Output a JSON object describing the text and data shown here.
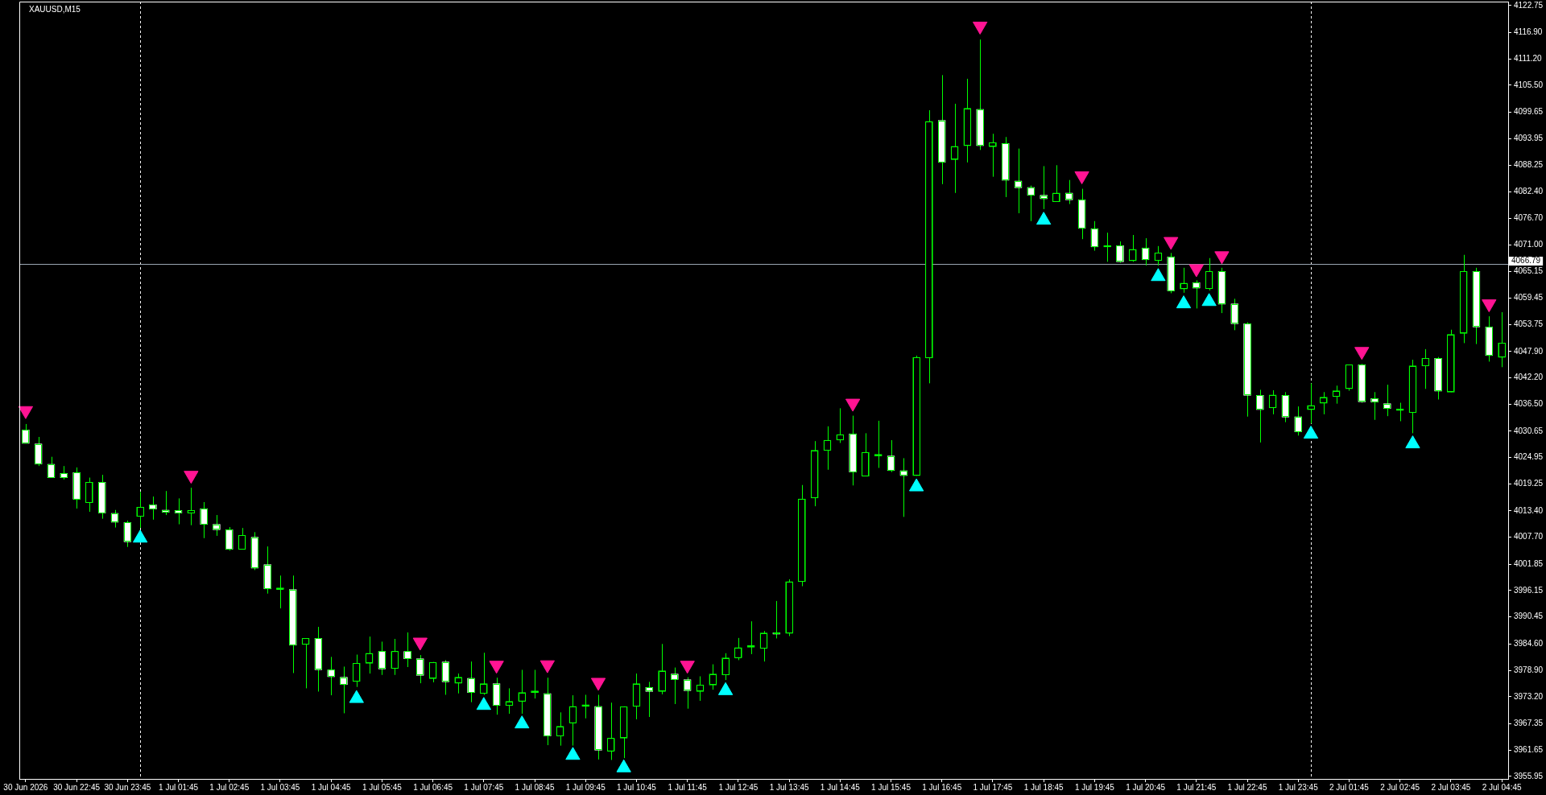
{
  "chart_data": {
    "type": "candlestick",
    "title": "XAUUSD,M15",
    "categories": [
      "30 Jun 2026",
      null,
      null,
      null,
      "30 Jun 22:45",
      null,
      null,
      null,
      "30 Jun 23:45",
      null,
      null,
      null,
      "1 Jul 01:45",
      null,
      null,
      null,
      "1 Jul 02:45",
      null,
      null,
      null,
      "1 Jul 03:45",
      null,
      null,
      null,
      "1 Jul 04:45",
      null,
      null,
      null,
      "1 Jul 05:45",
      null,
      null,
      null,
      "1 Jul 06:45",
      null,
      null,
      null,
      "1 Jul 07:45",
      null,
      null,
      null,
      "1 Jul 08:45",
      null,
      null,
      null,
      "1 Jul 09:45",
      null,
      null,
      null,
      "1 Jul 10:45",
      null,
      null,
      null,
      "1 Jul 11:45",
      null,
      null,
      null,
      "1 Jul 12:45",
      null,
      null,
      null,
      "1 Jul 13:45",
      null,
      null,
      null,
      "1 Jul 14:45",
      null,
      null,
      null,
      "1 Jul 15:45",
      null,
      null,
      null,
      "1 Jul 16:45",
      null,
      null,
      null,
      "1 Jul 17:45",
      null,
      null,
      null,
      "1 Jul 18:45",
      null,
      null,
      null,
      "1 Jul 19:45",
      null,
      null,
      null,
      "1 Jul 20:45",
      null,
      null,
      null,
      "1 Jul 21:45",
      null,
      null,
      null,
      "1 Jul 22:45",
      null,
      null,
      null,
      "1 Jul 23:45",
      null,
      null,
      null,
      "2 Jul 01:45",
      null,
      null,
      null,
      "2 Jul 02:45",
      null,
      null,
      null,
      "2 Jul 03:45",
      null,
      null,
      null,
      "2 Jul 04:45"
    ],
    "ohlc": [
      [
        4030.9,
        4032.2,
        4028.0,
        4028.0
      ],
      [
        4027.9,
        4029.4,
        4023.1,
        4023.5
      ],
      [
        4023.5,
        4025.1,
        4020.6,
        4020.6
      ],
      [
        4021.5,
        4023.1,
        4020.2,
        4020.6
      ],
      [
        4021.7,
        4022.8,
        4013.9,
        4015.9
      ],
      [
        4015.2,
        4020.6,
        4013.2,
        4019.6
      ],
      [
        4019.6,
        4021.2,
        4011.7,
        4012.9
      ],
      [
        4012.9,
        4013.6,
        4009.8,
        4010.9
      ],
      [
        4010.9,
        4011.3,
        4005.6,
        4006.7
      ],
      [
        4012.2,
        4017.5,
        4009.7,
        4014.2
      ],
      [
        4014.7,
        4016.5,
        4011.5,
        4013.8
      ],
      [
        4013.6,
        4017.7,
        4012.5,
        4013.1
      ],
      [
        4013.5,
        4016.1,
        4010.5,
        4012.9
      ],
      [
        4012.9,
        4018.4,
        4010.3,
        4013.5
      ],
      [
        4013.9,
        4015.3,
        4007.5,
        4010.5
      ],
      [
        4010.5,
        4012.5,
        4008.0,
        4009.3
      ],
      [
        4009.3,
        4009.9,
        4004.8,
        4005.1
      ],
      [
        4005.1,
        4009.7,
        4005.1,
        4008.1
      ],
      [
        4007.7,
        4008.8,
        4000.6,
        4001.0
      ],
      [
        4001.8,
        4005.7,
        3995.5,
        3996.5
      ],
      [
        3996.4,
        3999.4,
        3992.3,
        3996.4
      ],
      [
        3996.4,
        3999.4,
        3978.3,
        3984.3
      ],
      [
        3984.5,
        3985.8,
        3975.0,
        3985.8
      ],
      [
        3985.8,
        3988.3,
        3974.3,
        3979.0
      ],
      [
        3979.0,
        3981.8,
        3973.5,
        3977.5
      ],
      [
        3977.4,
        3979.7,
        3969.6,
        3975.8
      ],
      [
        3976.5,
        3982.3,
        3975.3,
        3980.4
      ],
      [
        3980.4,
        3986.2,
        3978.2,
        3982.6
      ],
      [
        3983.0,
        3985.1,
        3977.9,
        3979.2
      ],
      [
        3979.3,
        3985.7,
        3977.9,
        3983.0
      ],
      [
        3983.0,
        3987.1,
        3979.6,
        3981.4
      ],
      [
        3981.4,
        3982.2,
        3976.1,
        3977.8
      ],
      [
        3977.1,
        3980.7,
        3976.3,
        3980.6
      ],
      [
        3980.7,
        3981.1,
        3973.6,
        3976.4
      ],
      [
        3976.1,
        3978.2,
        3973.9,
        3977.4
      ],
      [
        3977.2,
        3980.8,
        3972.0,
        3974.1
      ],
      [
        3973.9,
        3982.7,
        3973.6,
        3976.0
      ],
      [
        3976.0,
        3977.3,
        3969.3,
        3971.3
      ],
      [
        3971.3,
        3975.0,
        3969.5,
        3972.2
      ],
      [
        3972.2,
        3979.0,
        3969.5,
        3974.1
      ],
      [
        3974.1,
        3979.0,
        3972.8,
        3974.1
      ],
      [
        3973.9,
        3977.3,
        3962.7,
        3964.7
      ],
      [
        3964.7,
        3969.8,
        3962.6,
        3966.8
      ],
      [
        3967.5,
        3973.5,
        3962.6,
        3971.1
      ],
      [
        3971.1,
        3973.6,
        3968.5,
        3971.1
      ],
      [
        3971.1,
        3973.6,
        3959.6,
        3961.6
      ],
      [
        3961.4,
        3971.9,
        3959.5,
        3964.2
      ],
      [
        3964.2,
        3971.1,
        3959.9,
        3971.0
      ],
      [
        3971.1,
        3978.2,
        3968.3,
        3976.0
      ],
      [
        3975.2,
        3976.4,
        3968.8,
        3974.3
      ],
      [
        3974.3,
        3984.6,
        3973.7,
        3978.8
      ],
      [
        3978.1,
        3979.5,
        3971.6,
        3976.9
      ],
      [
        3976.9,
        3977.4,
        3970.6,
        3974.5
      ],
      [
        3974.3,
        3977.6,
        3972.3,
        3975.7
      ],
      [
        3975.7,
        3980.2,
        3974.7,
        3978.1
      ],
      [
        3977.9,
        3982.6,
        3976.8,
        3981.6
      ],
      [
        3981.6,
        3985.9,
        3981.1,
        3983.8
      ],
      [
        3983.9,
        3989.5,
        3982.4,
        3983.9
      ],
      [
        3983.6,
        3987.4,
        3980.8,
        3987.0
      ],
      [
        3987.0,
        3993.9,
        3985.8,
        3986.7
      ],
      [
        3986.9,
        3998.6,
        3986.3,
        3998.1
      ],
      [
        3998.1,
        4019.0,
        3997.1,
        4016.0
      ],
      [
        4016.2,
        4028.5,
        4014.4,
        4026.5
      ],
      [
        4026.5,
        4031.7,
        4022.3,
        4028.7
      ],
      [
        4028.7,
        4035.6,
        4028.1,
        4029.9
      ],
      [
        4030.1,
        4034.0,
        4018.9,
        4021.8
      ],
      [
        4020.9,
        4030.2,
        4020.9,
        4026.1
      ],
      [
        4025.3,
        4032.9,
        4022.7,
        4025.3
      ],
      [
        4025.3,
        4028.7,
        4021.8,
        4022.1
      ],
      [
        4022.1,
        4024.8,
        4012.1,
        4021.0
      ],
      [
        4021.0,
        4047.0,
        4021.0,
        4046.6
      ],
      [
        4046.5,
        4100.1,
        4041.0,
        4097.7
      ],
      [
        4097.9,
        4107.7,
        4084.1,
        4088.8
      ],
      [
        4089.4,
        4101.5,
        4082.2,
        4092.3
      ],
      [
        4092.4,
        4106.9,
        4088.8,
        4100.5
      ],
      [
        4100.3,
        4115.4,
        4091.5,
        4092.4
      ],
      [
        4092.2,
        4095.0,
        4085.7,
        4093.1
      ],
      [
        4092.9,
        4094.3,
        4081.3,
        4084.9
      ],
      [
        4084.8,
        4091.8,
        4077.8,
        4083.3
      ],
      [
        4083.4,
        4083.8,
        4076.1,
        4081.7
      ],
      [
        4081.7,
        4088.0,
        4078.7,
        4080.9
      ],
      [
        4080.3,
        4088.2,
        4080.3,
        4082.2
      ],
      [
        4082.2,
        4085.0,
        4079.8,
        4080.7
      ],
      [
        4080.7,
        4083.1,
        4072.2,
        4074.5
      ],
      [
        4074.5,
        4076.1,
        4069.7,
        4070.5
      ],
      [
        4070.5,
        4073.6,
        4067.3,
        4070.5
      ],
      [
        4070.8,
        4071.7,
        4067.1,
        4067.3
      ],
      [
        4067.5,
        4073.1,
        4067.3,
        4070.0
      ],
      [
        4070.3,
        4072.4,
        4066.5,
        4067.7
      ],
      [
        4067.6,
        4070.7,
        4066.5,
        4069.2
      ],
      [
        4068.4,
        4069.2,
        4060.5,
        4061.0
      ],
      [
        4061.4,
        4066.0,
        4060.6,
        4062.7
      ],
      [
        4062.8,
        4063.3,
        4057.2,
        4061.6
      ],
      [
        4061.5,
        4068.1,
        4061.1,
        4065.2
      ],
      [
        4065.2,
        4066.0,
        4056.2,
        4058.1
      ],
      [
        4058.2,
        4059.3,
        4052.5,
        4053.9
      ],
      [
        4053.9,
        4054.2,
        4033.8,
        4038.4
      ],
      [
        4038.4,
        4039.6,
        4028.2,
        4035.3
      ],
      [
        4035.7,
        4039.5,
        4034.3,
        4038.5
      ],
      [
        4038.4,
        4039.1,
        4032.6,
        4033.7
      ],
      [
        4033.8,
        4036.0,
        4029.7,
        4030.5
      ],
      [
        4035.3,
        4041.0,
        4032.3,
        4036.2
      ],
      [
        4036.7,
        4039.1,
        4034.3,
        4038.0
      ],
      [
        4038.1,
        4040.5,
        4036.6,
        4039.4
      ],
      [
        4039.8,
        4045.0,
        4039.4,
        4045.0
      ],
      [
        4045.0,
        4045.2,
        4036.8,
        4037.0
      ],
      [
        4037.7,
        4039.1,
        4033.1,
        4036.9
      ],
      [
        4036.6,
        4040.7,
        4033.9,
        4035.5
      ],
      [
        4035.1,
        4036.8,
        4032.8,
        4035.1
      ],
      [
        4034.7,
        4046.1,
        4030.2,
        4044.8
      ],
      [
        4044.8,
        4048.4,
        4039.8,
        4046.4
      ],
      [
        4046.4,
        4046.7,
        4037.5,
        4039.3
      ],
      [
        4039.1,
        4052.6,
        4039.1,
        4051.6
      ],
      [
        4051.8,
        4068.8,
        4049.7,
        4065.2
      ],
      [
        4065.2,
        4066.0,
        4049.5,
        4053.2
      ],
      [
        4053.2,
        4055.5,
        4045.7,
        4047.0
      ],
      [
        4046.6,
        4056.4,
        4044.5,
        4049.7
      ]
    ],
    "color": "#00ff00",
    "colors": [
      "#ffffff",
      "#ffffff",
      "#ffffff",
      "#ffffff",
      "#ffffff",
      "#00ff00",
      "#ffffff",
      "#ffffff",
      "#ffffff",
      "#00ff00",
      "#ffffff",
      "#ffffff",
      "#ffffff",
      "#00ff00",
      "#ffffff",
      "#ffffff",
      "#ffffff",
      "#00ff00",
      "#ffffff",
      "#ffffff",
      "#00ff00",
      "#ffffff",
      "#00ff00",
      "#ffffff",
      "#ffffff",
      "#ffffff",
      "#00ff00",
      "#00ff00",
      "#ffffff",
      "#00ff00",
      "#ffffff",
      "#ffffff",
      "#00ff00",
      "#ffffff",
      "#00ff00",
      "#ffffff",
      "#00ff00",
      "#ffffff",
      "#00ff00",
      "#00ff00",
      "#00ff00",
      "#ffffff",
      "#00ff00",
      "#00ff00",
      "#00ff00",
      "#ffffff",
      "#00ff00",
      "#00ff00",
      "#00ff00",
      "#ffffff",
      "#00ff00",
      "#ffffff",
      "#ffffff",
      "#00ff00",
      "#00ff00",
      "#00ff00",
      "#00ff00",
      "#00ff00",
      "#00ff00",
      "#ffffff",
      "#00ff00",
      "#00ff00",
      "#00ff00",
      "#00ff00",
      "#00ff00",
      "#ffffff",
      "#00ff00",
      "#00ff00",
      "#ffffff",
      "#ffffff",
      "#00ff00",
      "#00ff00",
      "#ffffff",
      "#00ff00",
      "#00ff00",
      "#ffffff",
      "#00ff00",
      "#ffffff",
      "#ffffff",
      "#ffffff",
      "#ffffff",
      "#00ff00",
      "#ffffff",
      "#ffffff",
      "#ffffff",
      "#00ff00",
      "#ffffff",
      "#00ff00",
      "#ffffff",
      "#00ff00",
      "#ffffff",
      "#00ff00",
      "#ffffff",
      "#00ff00",
      "#ffffff",
      "#ffffff",
      "#ffffff",
      "#ffffff",
      "#00ff00",
      "#ffffff",
      "#ffffff",
      "#00ff00",
      "#00ff00",
      "#00ff00",
      "#00ff00",
      "#ffffff",
      "#ffffff",
      "#ffffff",
      "#00ff00",
      "#00ff00",
      "#00ff00",
      "#ffffff",
      "#00ff00",
      "#00ff00",
      "#ffffff",
      "#ffffff",
      "#00ff00"
    ],
    "series": [
      {
        "type": "scatter",
        "color": "#00ffff",
        "marker": "triangle",
        "values": [
          null,
          null,
          null,
          null,
          null,
          null,
          null,
          null,
          null,
          4007.5,
          null,
          null,
          null,
          null,
          null,
          null,
          null,
          null,
          null,
          null,
          null,
          null,
          null,
          null,
          null,
          null,
          3972.8,
          null,
          null,
          null,
          null,
          null,
          null,
          null,
          null,
          null,
          3971.3,
          null,
          null,
          3967.3,
          null,
          null,
          null,
          3960.5,
          null,
          null,
          null,
          3957.8,
          null,
          null,
          null,
          null,
          null,
          null,
          null,
          3974.5,
          null,
          null,
          null,
          null,
          null,
          null,
          null,
          null,
          null,
          null,
          null,
          null,
          null,
          null,
          4018.6,
          null,
          null,
          null,
          null,
          null,
          null,
          null,
          null,
          null,
          4076.3,
          null,
          null,
          null,
          null,
          null,
          null,
          null,
          null,
          4064.1,
          null,
          4058.2,
          null,
          4058.7,
          null,
          null,
          null,
          null,
          null,
          null,
          null,
          4030.0,
          null,
          null,
          null,
          null,
          null,
          null,
          null,
          4027.9,
          null,
          null,
          null,
          null,
          null,
          null,
          null
        ]
      },
      {
        "type": "scatter",
        "color": "#ff1493",
        "marker": "triangle",
        "values": [
          4035.1,
          null,
          null,
          null,
          null,
          null,
          null,
          null,
          null,
          null,
          null,
          null,
          null,
          4021.1,
          null,
          null,
          null,
          null,
          null,
          null,
          null,
          null,
          null,
          null,
          null,
          null,
          null,
          null,
          null,
          null,
          null,
          3985.0,
          null,
          null,
          null,
          null,
          null,
          3980.0,
          null,
          null,
          null,
          3980.1,
          null,
          null,
          null,
          3976.3,
          null,
          null,
          null,
          null,
          null,
          null,
          3980.0,
          null,
          null,
          null,
          null,
          null,
          null,
          null,
          null,
          null,
          null,
          null,
          null,
          4036.7,
          null,
          null,
          null,
          null,
          null,
          null,
          null,
          null,
          null,
          4118.3,
          null,
          null,
          null,
          null,
          null,
          null,
          null,
          4085.9,
          null,
          null,
          null,
          null,
          null,
          null,
          4071.7,
          null,
          4065.8,
          null,
          4068.6,
          null,
          null,
          null,
          null,
          null,
          null,
          null,
          null,
          null,
          null,
          4047.9,
          null,
          null,
          null,
          null,
          null,
          null,
          null,
          null,
          null,
          4058.2,
          null
        ]
      }
    ],
    "ylim": [
      3955.4,
      4123.6
    ],
    "yticks": [
      4122.75,
      {
        "value": 4116.9,
        "label": "4116.90"
      },
      {
        "value": 4111.2,
        "label": "4111.20"
      },
      {
        "value": 4105.5,
        "label": "4105.50"
      },
      4099.65,
      4093.95,
      4088.25,
      {
        "value": 4082.4,
        "label": "4082.40"
      },
      {
        "value": 4076.7,
        "label": "4076.70"
      },
      {
        "value": 4071,
        "label": "4071.00"
      },
      4065.15,
      4059.45,
      4053.75,
      {
        "value": 4047.9,
        "label": "4047.90"
      },
      {
        "value": 4042.2,
        "label": "4042.20"
      },
      {
        "value": 4036.5,
        "label": "4036.50"
      },
      4030.65,
      4024.95,
      4019.25,
      {
        "value": 4013.4,
        "label": "4013.40"
      },
      {
        "value": 4007.7,
        "label": "4007.70"
      },
      4001.85,
      3996.15,
      3990.45,
      {
        "value": 3984.6,
        "label": "3984.60"
      },
      {
        "value": 3978.9,
        "label": "3978.90"
      },
      {
        "value": 3973.2,
        "label": "3973.20"
      },
      3967.35,
      3961.65,
      3955.95
    ],
    "ref_lines": [
      {
        "axis": "y",
        "value": 4066.79,
        "label": "4066.79",
        "color": "#9aa6b2"
      }
    ]
  }
}
